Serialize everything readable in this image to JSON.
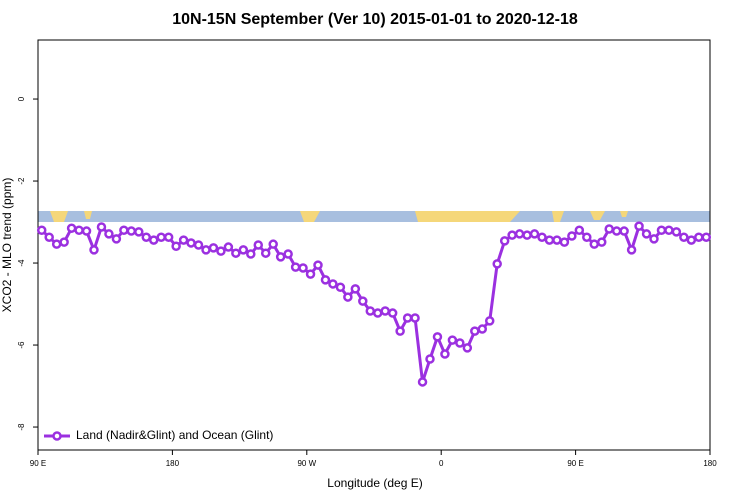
{
  "chart_data": {
    "type": "line",
    "title": "10N-15N September (Ver 10)   2015-01-01 to 2020-12-18",
    "xlabel": "Longitude (deg E)",
    "ylabel": "XCO2 - MLO trend (ppm)",
    "xlim": [
      90,
      540
    ],
    "xticks": [
      {
        "value": 90,
        "label": "90 E"
      },
      {
        "value": 180,
        "label": "180"
      },
      {
        "value": 270,
        "label": "90 W"
      },
      {
        "value": 360,
        "label": "0"
      },
      {
        "value": 450,
        "label": "90 E"
      },
      {
        "value": 540,
        "label": "180"
      }
    ],
    "ylim": [
      -8.56,
      1.44
    ],
    "yticks": [
      0,
      -2,
      -4,
      -6,
      -8
    ],
    "legend": "bottom-left",
    "x": [
      92.5,
      97.5,
      102.5,
      107.5,
      112.5,
      117.5,
      122.5,
      127.5,
      132.5,
      137.5,
      142.5,
      147.5,
      152.5,
      157.5,
      162.5,
      167.5,
      172.5,
      177.5,
      182.5,
      187.5,
      192.5,
      197.5,
      202.5,
      207.5,
      212.5,
      217.5,
      222.5,
      227.5,
      232.5,
      237.5,
      242.5,
      247.5,
      252.5,
      257.5,
      262.5,
      267.5,
      272.5,
      277.5,
      282.5,
      287.5,
      292.5,
      297.5,
      302.5,
      307.5,
      312.5,
      317.5,
      322.5,
      327.5,
      332.5,
      337.5,
      342.5,
      347.5,
      352.5,
      357.5,
      362.5,
      367.5,
      372.5,
      377.5,
      382.5,
      387.5,
      392.5,
      397.5,
      402.5,
      407.5,
      412.5,
      417.5,
      422.5,
      427.5,
      432.5,
      437.5,
      442.5,
      447.5,
      452.5,
      457.5,
      462.5,
      467.5,
      472.5,
      477.5,
      482.5,
      487.5,
      492.5,
      497.5,
      502.5,
      507.5,
      512.5,
      517.5,
      522.5,
      527.5,
      532.5,
      537.5
    ],
    "series": [
      {
        "name": "Land (Nadir&Glint) and Ocean (Glint)",
        "color": "#9b30e0",
        "values": [
          -3.2,
          -3.37,
          -3.54,
          -3.49,
          -3.15,
          -3.2,
          -3.22,
          -3.68,
          -3.12,
          -3.29,
          -3.41,
          -3.2,
          -3.22,
          -3.24,
          -3.37,
          -3.44,
          -3.37,
          -3.37,
          -3.59,
          -3.44,
          -3.51,
          -3.56,
          -3.68,
          -3.63,
          -3.71,
          -3.61,
          -3.76,
          -3.68,
          -3.78,
          -3.56,
          -3.76,
          -3.54,
          -3.85,
          -3.78,
          -4.1,
          -4.12,
          -4.27,
          -4.05,
          -4.41,
          -4.51,
          -4.59,
          -4.83,
          -4.63,
          -4.93,
          -5.17,
          -5.22,
          -5.17,
          -5.22,
          -5.66,
          -5.34,
          -5.34,
          -6.9,
          -6.34,
          -5.8,
          -6.22,
          -5.88,
          -5.95,
          -6.07,
          -5.66,
          -5.61,
          -5.41,
          -4.02,
          -3.46,
          -3.32,
          -3.29,
          -3.32,
          -3.29,
          -3.37,
          -3.44,
          -3.44,
          -3.49,
          -3.34,
          -3.2,
          -3.37,
          -3.54,
          -3.49,
          -3.17,
          -3.22,
          -3.22,
          -3.68,
          -3.1,
          -3.29,
          -3.41,
          -3.2,
          -3.2,
          -3.24,
          -3.37,
          -3.44,
          -3.37,
          -3.37
        ]
      }
    ]
  }
}
